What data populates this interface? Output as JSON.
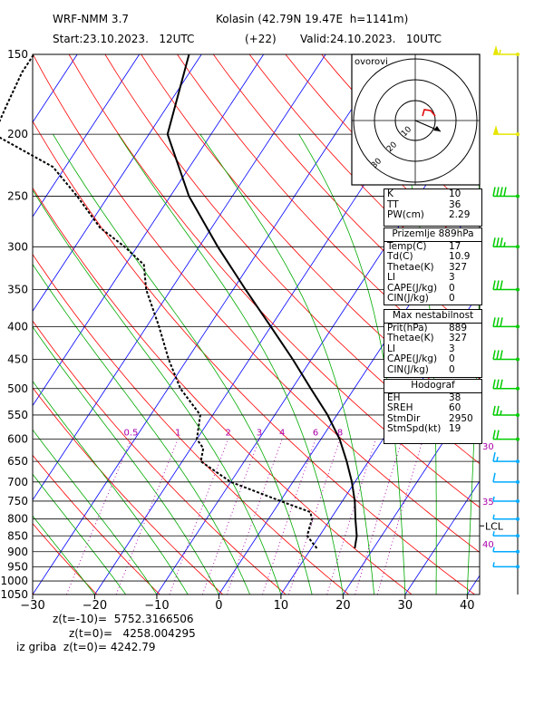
{
  "header": {
    "model": "WRF-NMM 3.7",
    "station": "Kolasin (42.79N 19.47E  h=1141m)",
    "start": "Start:23.10.2023.   12UTC",
    "offset": "(+22)",
    "valid": "Valid:24.10.2023.   10UTC"
  },
  "hodograph": {
    "label": "ovorovi",
    "ring_labels": [
      "10",
      "20",
      "30"
    ]
  },
  "indices_box": {
    "rows": [
      {
        "k": "K",
        "v": "10"
      },
      {
        "k": "TT",
        "v": "36"
      },
      {
        "k": "PW(cm)",
        "v": "2.29"
      }
    ]
  },
  "surface_box": {
    "title": "Prizemlje 889hPa",
    "rows": [
      {
        "k": "Temp(C)",
        "v": "17"
      },
      {
        "k": "Td(C)",
        "v": "10.9"
      },
      {
        "k": "Thetae(K)",
        "v": "327"
      },
      {
        "k": "LI",
        "v": "3"
      },
      {
        "k": "CAPE(J/kg)",
        "v": "0"
      },
      {
        "k": "CIN(J/kg)",
        "v": "0"
      }
    ]
  },
  "instab_box": {
    "title": "Max nestabilnost",
    "rows": [
      {
        "k": "Prit(hPa)",
        "v": "889"
      },
      {
        "k": "Thetae(K)",
        "v": "327"
      },
      {
        "k": "LI",
        "v": "3"
      },
      {
        "k": "CAPE(J/kg)",
        "v": "0"
      },
      {
        "k": "CIN(J/kg)",
        "v": "0"
      }
    ]
  },
  "hodo_box": {
    "title": "Hodograf",
    "rows": [
      {
        "k": "EH",
        "v": "38"
      },
      {
        "k": "SREH",
        "v": "60"
      },
      {
        "k": "StmDir",
        "v": "2950"
      },
      {
        "k": "StmSpd(kt)",
        "v": "19"
      }
    ]
  },
  "footer": {
    "line1": "z(t=-10)=  5752.3166506",
    "line2": "z(t=0)=   4258.004295",
    "line3": "iz griba  z(t=0)= 4242.79"
  },
  "colors": {
    "isobar": "#000000",
    "isotherm": "#0000ff",
    "dry_adiabat": "#ff0000",
    "moist_adiabat": "#00aa00",
    "mixing_ratio": "#aa00aa",
    "wind_upper": "#e6e600",
    "wind_mid": "#00cc00",
    "wind_low": "#00aaff"
  },
  "chart_data": {
    "type": "line",
    "title": "",
    "xlabel": "",
    "ylabel": "",
    "x_ticks": [
      "-30",
      "-20",
      "-10",
      "0",
      "10",
      "20",
      "30",
      "40"
    ],
    "y_ticks": [
      "150",
      "200",
      "250",
      "300",
      "350",
      "400",
      "450",
      "500",
      "550",
      "600",
      "650",
      "700",
      "750",
      "800",
      "850",
      "900",
      "950",
      "1000",
      "1050"
    ],
    "xlim": [
      -30,
      42
    ],
    "ylim": [
      1050,
      150
    ],
    "skew_per_log": 44,
    "mixing_ratio_labels": [
      "0.5",
      "1",
      "2",
      "3",
      "4",
      "6",
      "8"
    ],
    "isohume_labels_right": [
      "30",
      "35",
      "40"
    ],
    "lcl_label": "LCL",
    "series": [
      {
        "name": "",
        "role": "temperature",
        "points": [
          [
            889,
            17
          ],
          [
            850,
            16
          ],
          [
            800,
            14
          ],
          [
            750,
            12
          ],
          [
            700,
            9.5
          ],
          [
            650,
            6.5
          ],
          [
            600,
            3
          ],
          [
            550,
            -1.5
          ],
          [
            500,
            -7
          ],
          [
            450,
            -13
          ],
          [
            400,
            -20
          ],
          [
            350,
            -28
          ],
          [
            300,
            -37
          ],
          [
            250,
            -47
          ],
          [
            200,
            -57
          ],
          [
            150,
            -62
          ]
        ]
      },
      {
        "name": "",
        "role": "dewpoint",
        "points": [
          [
            889,
            10.9
          ],
          [
            850,
            8
          ],
          [
            800,
            7
          ],
          [
            780,
            6
          ],
          [
            760,
            2
          ],
          [
            700,
            -10
          ],
          [
            650,
            -17
          ],
          [
            620,
            -18
          ],
          [
            600,
            -20
          ],
          [
            550,
            -22
          ],
          [
            500,
            -28
          ],
          [
            450,
            -33
          ],
          [
            400,
            -38
          ],
          [
            350,
            -44
          ],
          [
            320,
            -47
          ],
          [
            300,
            -52
          ],
          [
            280,
            -58
          ],
          [
            250,
            -65
          ],
          [
            225,
            -72
          ],
          [
            200,
            -85
          ],
          [
            180,
            -86
          ],
          [
            160,
            -87
          ],
          [
            150,
            -87
          ]
        ]
      }
    ],
    "winds": [
      {
        "p": 150,
        "dir": 270,
        "spd": 55
      },
      {
        "p": 200,
        "dir": 270,
        "spd": 50
      },
      {
        "p": 250,
        "dir": 270,
        "spd": 40
      },
      {
        "p": 300,
        "dir": 270,
        "spd": 35
      },
      {
        "p": 350,
        "dir": 270,
        "spd": 30
      },
      {
        "p": 400,
        "dir": 270,
        "spd": 30
      },
      {
        "p": 450,
        "dir": 270,
        "spd": 30
      },
      {
        "p": 500,
        "dir": 270,
        "spd": 30
      },
      {
        "p": 550,
        "dir": 270,
        "spd": 25
      },
      {
        "p": 600,
        "dir": 270,
        "spd": 20
      },
      {
        "p": 650,
        "dir": 270,
        "spd": 15
      },
      {
        "p": 700,
        "dir": 270,
        "spd": 10
      },
      {
        "p": 750,
        "dir": 250,
        "spd": 5
      },
      {
        "p": 800,
        "dir": 230,
        "spd": 5
      },
      {
        "p": 850,
        "dir": 220,
        "spd": 5
      },
      {
        "p": 900,
        "dir": 210,
        "spd": 5
      },
      {
        "p": 950,
        "dir": 200,
        "spd": 5
      }
    ]
  }
}
